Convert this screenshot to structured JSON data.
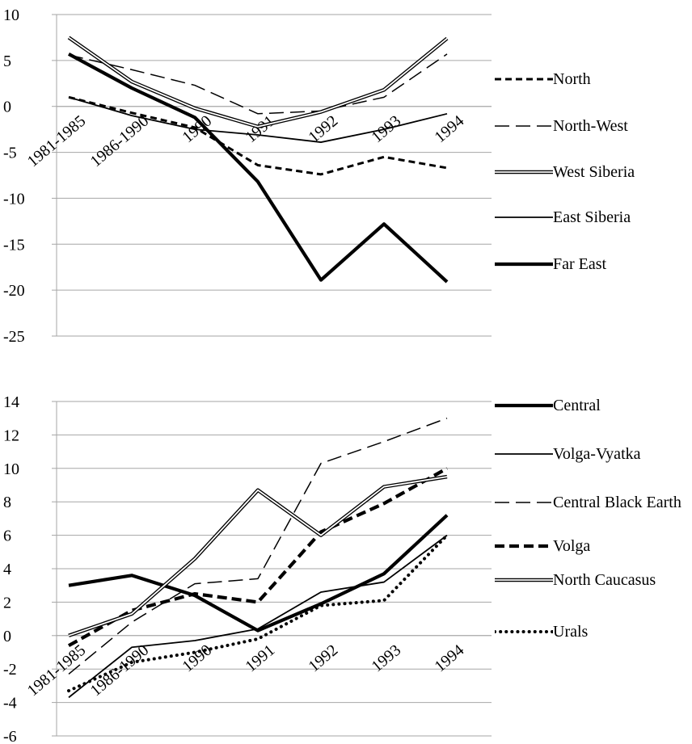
{
  "chart_data": [
    {
      "type": "line",
      "categories": [
        "1981-1985",
        "1986-1990",
        "1990",
        "1991",
        "1992",
        "1993",
        "1994"
      ],
      "ylim": [
        -25,
        10
      ],
      "yticks": [
        -25,
        -20,
        -15,
        -10,
        -5,
        0,
        5,
        10
      ],
      "grid": true,
      "legend": "right",
      "series": [
        {
          "name": "North",
          "color": "#000000",
          "style": "short-dash",
          "values": [
            1.0,
            -0.7,
            -2.3,
            -6.4,
            -7.4,
            -5.5,
            -6.7
          ]
        },
        {
          "name": "North-West",
          "color": "#000000",
          "style": "long-dash",
          "values": [
            5.6,
            4.0,
            2.3,
            -0.8,
            -0.5,
            1.0,
            5.7
          ]
        },
        {
          "name": "West Siberia",
          "color": "#000000",
          "style": "double",
          "values": [
            7.5,
            2.7,
            -0.2,
            -2.2,
            -0.6,
            1.8,
            7.4
          ]
        },
        {
          "name": "East Siberia",
          "color": "#000000",
          "style": "solid",
          "values": [
            1.0,
            -1.0,
            -2.5,
            -3.1,
            -3.9,
            -2.5,
            -0.8
          ]
        },
        {
          "name": "Far East",
          "color": "#000000",
          "style": "thick",
          "values": [
            5.7,
            2.0,
            -1.2,
            -8.2,
            -18.9,
            -12.8,
            -19.1
          ]
        }
      ]
    },
    {
      "type": "line",
      "categories": [
        "1981-1985",
        "1986-1990",
        "1990",
        "1991",
        "1992",
        "1993",
        "1994"
      ],
      "ylim": [
        -6,
        14
      ],
      "yticks": [
        -6,
        -4,
        -2,
        0,
        2,
        4,
        6,
        8,
        10,
        12,
        14
      ],
      "grid": true,
      "legend": "right",
      "series": [
        {
          "name": "Central",
          "color": "#000000",
          "style": "thick",
          "values": [
            3.0,
            3.6,
            2.4,
            0.3,
            1.9,
            3.7,
            7.2
          ]
        },
        {
          "name": "Volga-Vyatka",
          "color": "#000000",
          "style": "solid",
          "values": [
            -3.7,
            -0.7,
            -0.3,
            0.4,
            2.6,
            3.2,
            6.0
          ]
        },
        {
          "name": "Central Black Earth",
          "color": "#000000",
          "style": "long-dash",
          "values": [
            -2.3,
            0.8,
            3.1,
            3.4,
            10.3,
            11.6,
            13.0
          ]
        },
        {
          "name": "Volga",
          "color": "#000000",
          "style": "thick-dash",
          "values": [
            -0.6,
            1.5,
            2.5,
            2.0,
            6.2,
            7.9,
            10.0
          ]
        },
        {
          "name": "North Caucasus",
          "color": "#000000",
          "style": "double",
          "values": [
            0.0,
            1.3,
            4.6,
            8.7,
            6.0,
            8.9,
            9.5
          ]
        },
        {
          "name": "Urals",
          "color": "#000000",
          "style": "dotted",
          "values": [
            -3.3,
            -1.6,
            -1.0,
            -0.2,
            1.8,
            2.1,
            6.0
          ]
        }
      ]
    }
  ]
}
